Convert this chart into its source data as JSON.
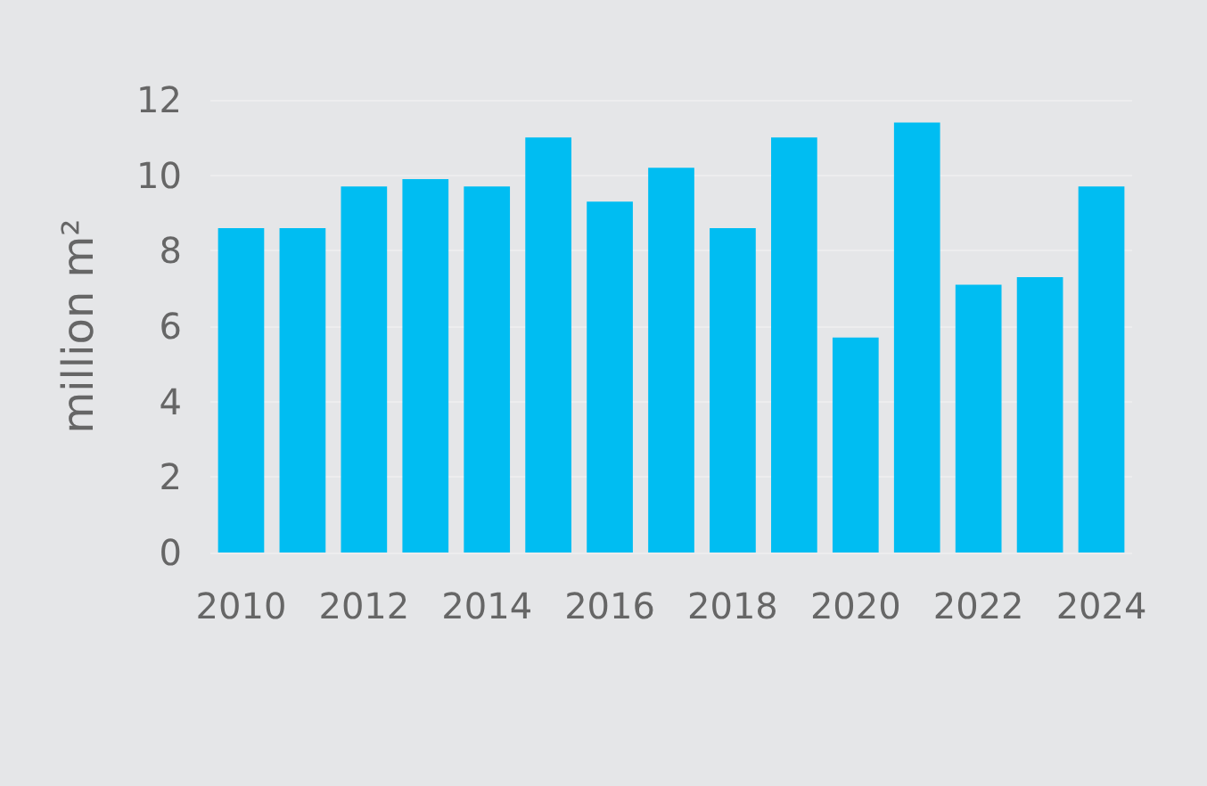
{
  "chart_data": {
    "type": "bar",
    "ylabel": "million m²",
    "categories": [
      "2010",
      null,
      "2012",
      null,
      "2014",
      null,
      "2016",
      null,
      "2018",
      null,
      "2020",
      null,
      "2022",
      null,
      "2024"
    ],
    "values": [
      8.6,
      8.6,
      9.7,
      9.9,
      9.7,
      11.0,
      9.3,
      10.2,
      8.6,
      11.0,
      5.7,
      11.4,
      7.1,
      7.3,
      9.7
    ],
    "color": "#00bdf2",
    "ylim": [
      0,
      12
    ],
    "yticks": [
      0,
      2,
      4,
      6,
      8,
      10,
      12
    ],
    "grid": "y"
  }
}
